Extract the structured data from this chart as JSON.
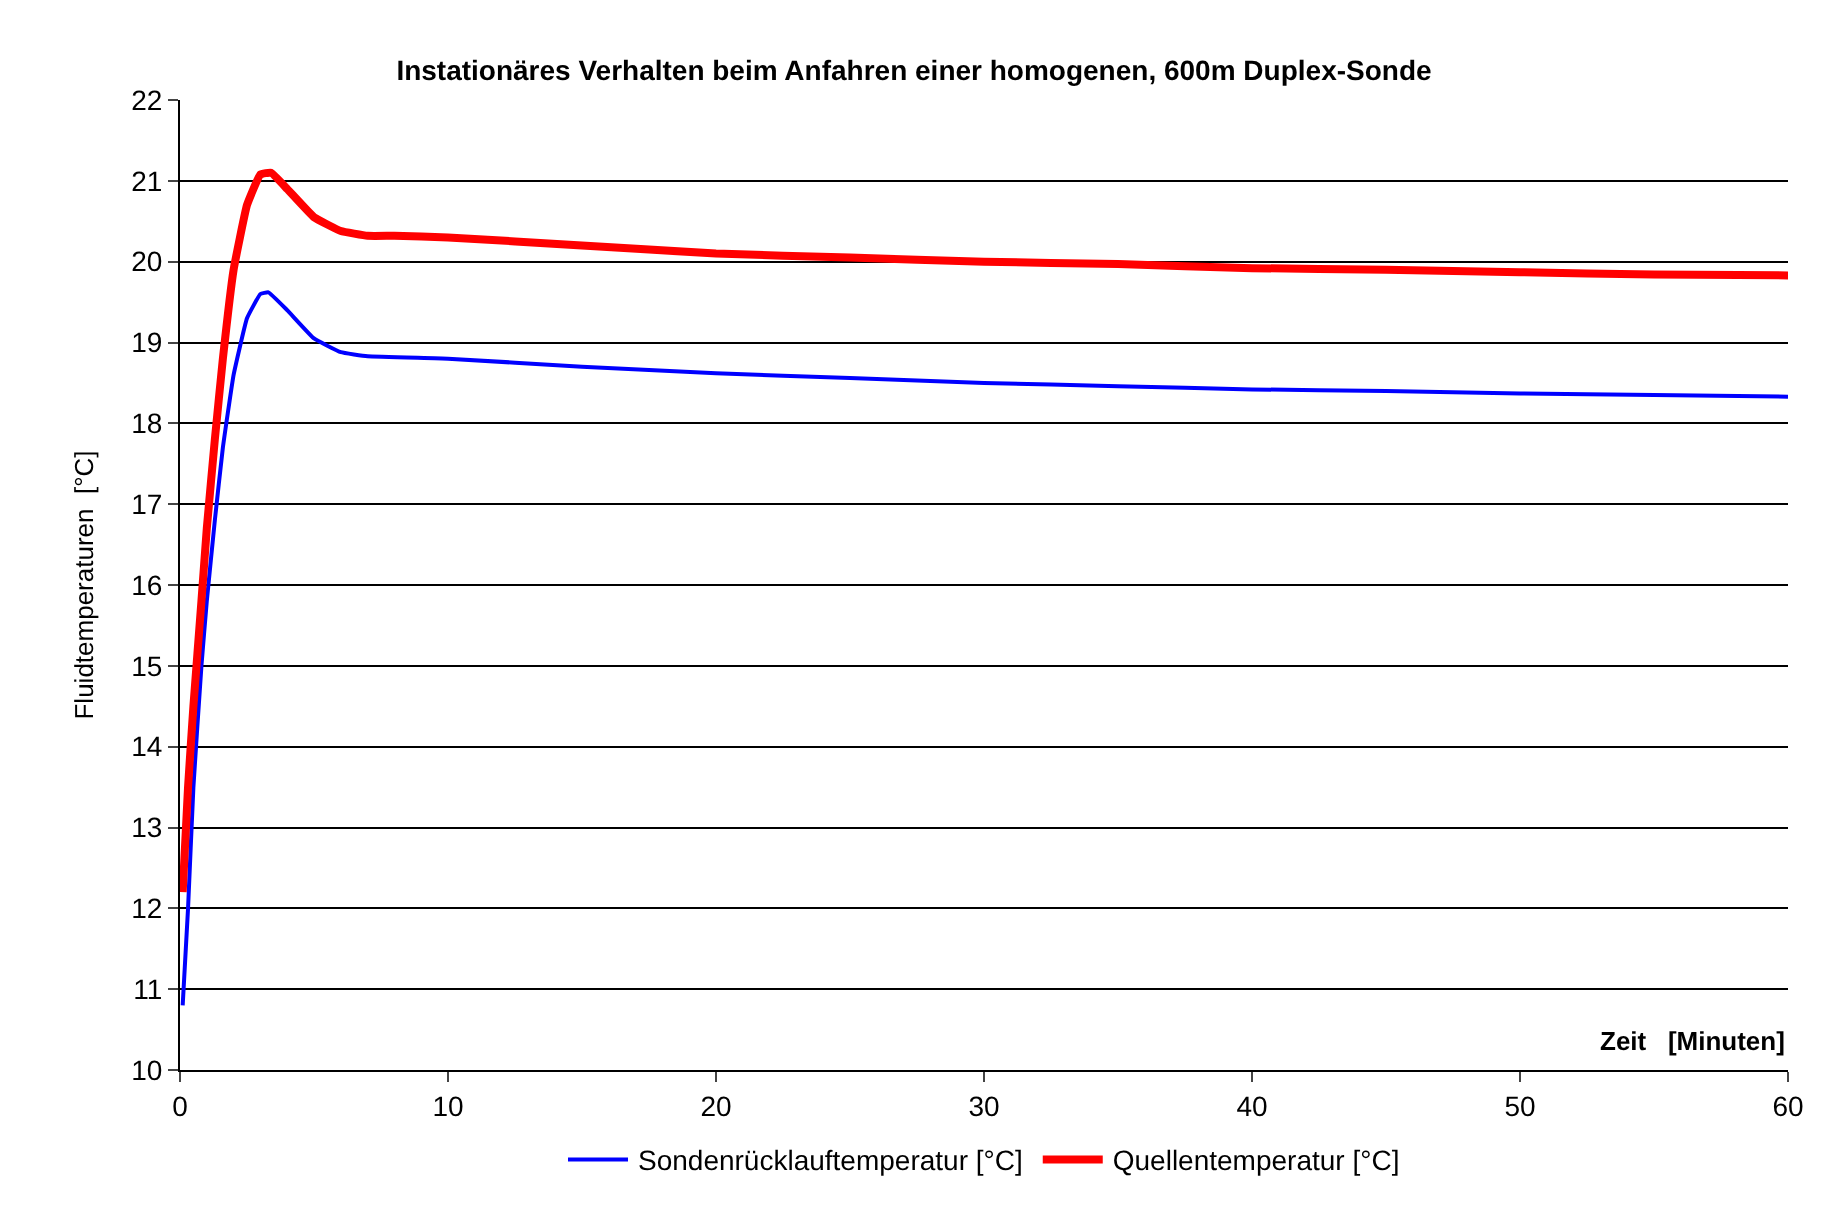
{
  "chart_data": {
    "type": "line",
    "title": "Instationäres Verhalten beim Anfahren einer homogenen, 600m Duplex-Sonde",
    "xlabel": "Zeit   [Minuten]",
    "ylabel": "Fluidtemperaturen  [°C]",
    "xlim": [
      0,
      60
    ],
    "xticks": [
      0,
      10,
      20,
      30,
      40,
      50,
      60
    ],
    "ylim": [
      10,
      22
    ],
    "yticks": [
      10,
      11,
      12,
      13,
      14,
      15,
      16,
      17,
      18,
      19,
      20,
      21,
      22
    ],
    "grid": "y",
    "legend": "bottom",
    "marker": "none",
    "line_style": "solid",
    "series": [
      {
        "name": "Sondenrücklauftemperatur [°C]",
        "color": "#0000ff",
        "x": [
          0.1,
          0.3,
          0.5,
          0.8,
          1.0,
          1.3,
          1.6,
          2.0,
          2.5,
          3.0,
          3.3,
          4,
          5,
          6,
          7,
          10,
          15,
          20,
          25,
          30,
          35,
          40,
          45,
          50,
          55,
          60
        ],
        "values": [
          10.8,
          12.0,
          13.5,
          15.0,
          15.8,
          16.8,
          17.7,
          18.6,
          19.3,
          19.6,
          19.62,
          19.4,
          19.05,
          18.88,
          18.83,
          18.8,
          18.7,
          18.62,
          18.56,
          18.5,
          18.46,
          18.42,
          18.4,
          18.37,
          18.35,
          18.33
        ]
      },
      {
        "name": "Quellentemperatur [°C]",
        "color": "#ff0000",
        "x": [
          0.1,
          0.3,
          0.5,
          0.8,
          1.0,
          1.3,
          1.6,
          2.0,
          2.5,
          3.0,
          3.4,
          4,
          5,
          6,
          7,
          8,
          10,
          15,
          20,
          25,
          30,
          35,
          40,
          45,
          50,
          55,
          60
        ],
        "values": [
          12.2,
          13.5,
          14.5,
          15.8,
          16.7,
          17.8,
          18.8,
          19.9,
          20.7,
          21.08,
          21.1,
          20.9,
          20.55,
          20.38,
          20.32,
          20.32,
          20.3,
          20.2,
          20.1,
          20.05,
          20.0,
          19.97,
          19.92,
          19.9,
          19.87,
          19.84,
          19.83
        ]
      }
    ]
  }
}
